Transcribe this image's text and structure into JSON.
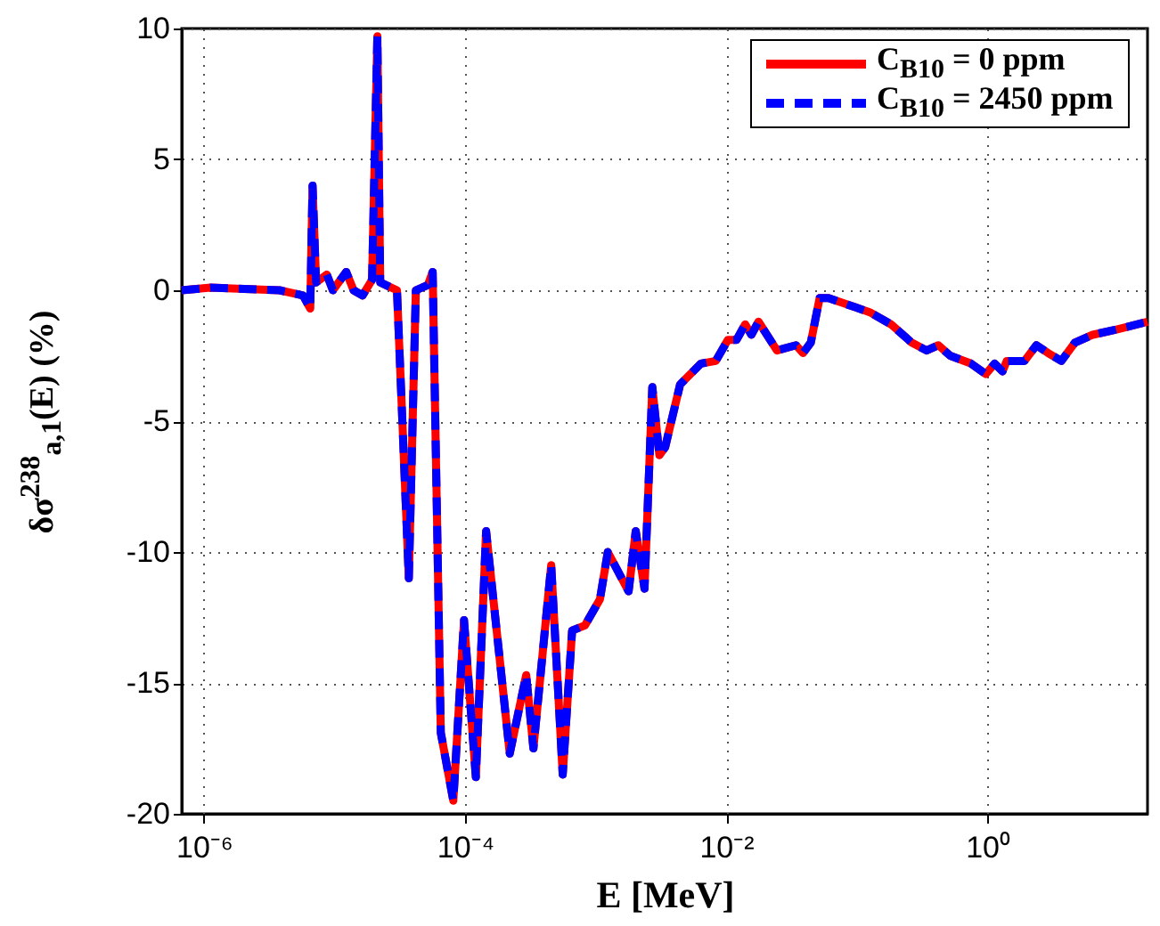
{
  "chart_data": {
    "type": "line",
    "xlabel": "E [MeV]",
    "ylabel": "δσ$^{238}$$_{a,1}$(E) (%)",
    "log": "x",
    "grid": true,
    "legend": "top right",
    "marker": "none",
    "xlim": [
      6.76e-07,
      16.9
    ],
    "ylim": [
      -20,
      10
    ],
    "xticks": [
      {
        "value": 1e-06,
        "label": "10⁻⁶"
      },
      {
        "value": 0.0001,
        "label": "10⁻⁴"
      },
      {
        "value": 0.01,
        "label": "10⁻²"
      },
      {
        "value": 1,
        "label": "10⁰"
      }
    ],
    "yticks": [
      -20,
      -15,
      -10,
      -5,
      0,
      5,
      10
    ],
    "x": [
      6.76e-07,
      1.12e-06,
      3.8e-06,
      5.75e-06,
      6.52e-06,
      6.79e-06,
      7.23e-06,
      8.73e-06,
      9.72e-06,
      1.23e-05,
      1.4e-05,
      1.64e-05,
      1.94e-05,
      2.13e-05,
      2.24e-05,
      3.01e-05,
      3.71e-05,
      4.2e-05,
      5.19e-05,
      5.65e-05,
      6.52e-05,
      8.13e-05,
      9.82e-05,
      0.000121,
      0.000145,
      0.00022,
      0.000294,
      0.000334,
      0.000457,
      0.00056,
      0.000661,
      0.00083,
      0.00108,
      0.00124,
      0.00179,
      0.00203,
      0.00237,
      0.00272,
      0.00308,
      0.00341,
      0.00444,
      0.0064,
      0.00833,
      0.0103,
      0.012,
      0.014,
      0.0156,
      0.0177,
      0.0245,
      0.0343,
      0.0388,
      0.0445,
      0.052,
      0.0608,
      0.0975,
      0.126,
      0.183,
      0.264,
      0.343,
      0.423,
      0.52,
      0.751,
      0.975,
      1.14,
      1.31,
      1.41,
      1.93,
      2.38,
      2.93,
      3.7,
      4.69,
      6.42,
      9.78,
      16.9
    ],
    "series": [
      {
        "name": "C$_{B10}$ = 0 ppm",
        "color": "#ff0000",
        "line_style": "solid",
        "values": [
          0,
          0.1,
          0,
          -0.2,
          -0.7,
          4.0,
          0.3,
          0.6,
          0,
          0.7,
          0,
          -0.2,
          0.4,
          9.7,
          0.3,
          0,
          -11,
          0,
          0.2,
          0.7,
          -16.9,
          -19.5,
          -12.6,
          -18.6,
          -9.2,
          -17.7,
          -14.7,
          -17.5,
          -10.5,
          -18.5,
          -13.0,
          -12.8,
          -11.8,
          -10,
          -11.5,
          -9.2,
          -11.4,
          -3.7,
          -6.3,
          -6.0,
          -3.6,
          -2.8,
          -2.7,
          -1.9,
          -1.9,
          -1.3,
          -1.7,
          -1.2,
          -2.3,
          -2.1,
          -2.4,
          -2.0,
          -0.3,
          -0.3,
          -0.65,
          -0.84,
          -1.3,
          -2.0,
          -2.3,
          -2.1,
          -2.5,
          -2.8,
          -3.2,
          -2.8,
          -3.1,
          -2.7,
          -2.7,
          -2.1,
          -2.4,
          -2.7,
          -2.0,
          -1.7,
          -1.5,
          -1.2
        ]
      },
      {
        "name": "C$_{B10}$ = 2450 ppm",
        "color": "#0000ff",
        "line_style": "dashed",
        "values": [
          0,
          0.1,
          0,
          -0.2,
          -0.7,
          4.0,
          0.3,
          0.6,
          0,
          0.7,
          0,
          -0.2,
          0.4,
          9.7,
          0.3,
          0,
          -11,
          0,
          0.2,
          0.7,
          -16.9,
          -19.5,
          -12.6,
          -18.6,
          -9.2,
          -17.7,
          -14.7,
          -17.5,
          -10.5,
          -18.5,
          -13.0,
          -12.8,
          -11.8,
          -10,
          -11.5,
          -9.2,
          -11.4,
          -3.7,
          -6.3,
          -6.0,
          -3.6,
          -2.8,
          -2.7,
          -1.9,
          -1.9,
          -1.3,
          -1.7,
          -1.2,
          -2.3,
          -2.1,
          -2.4,
          -2.0,
          -0.3,
          -0.3,
          -0.65,
          -0.84,
          -1.3,
          -2.0,
          -2.3,
          -2.1,
          -2.5,
          -2.8,
          -3.2,
          -2.8,
          -3.1,
          -2.7,
          -2.7,
          -2.1,
          -2.4,
          -2.7,
          -2.0,
          -1.7,
          -1.5,
          -1.2
        ]
      }
    ]
  }
}
